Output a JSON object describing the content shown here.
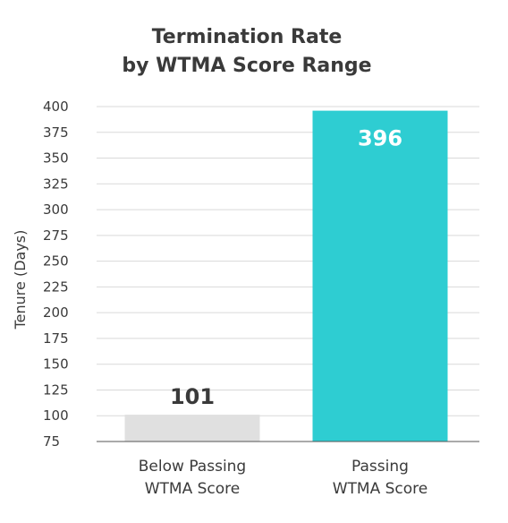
{
  "chart_data": {
    "type": "bar",
    "title_lines": [
      "Termination Rate",
      "by WTMA Score Range"
    ],
    "ylabel": "Tenure (Days)",
    "xlabel": "",
    "categories": [
      [
        "Below Passing",
        "WTMA Score"
      ],
      [
        "Passing",
        "WTMA Score"
      ]
    ],
    "values": [
      101,
      396
    ],
    "value_labels": [
      "101",
      "396"
    ],
    "bar_colors": [
      "#e0e0e0",
      "#2ecdd2"
    ],
    "value_label_colors": [
      "#3a3a3a",
      "#ffffff"
    ],
    "value_label_position": [
      "above",
      "inside"
    ],
    "ylim": [
      75,
      400
    ],
    "yticks": [
      "400",
      "375",
      "350",
      "325",
      "300",
      "275",
      "250",
      "225",
      "200",
      "175",
      "150",
      "125",
      "100",
      "75"
    ],
    "grid": true,
    "legend": "none"
  }
}
